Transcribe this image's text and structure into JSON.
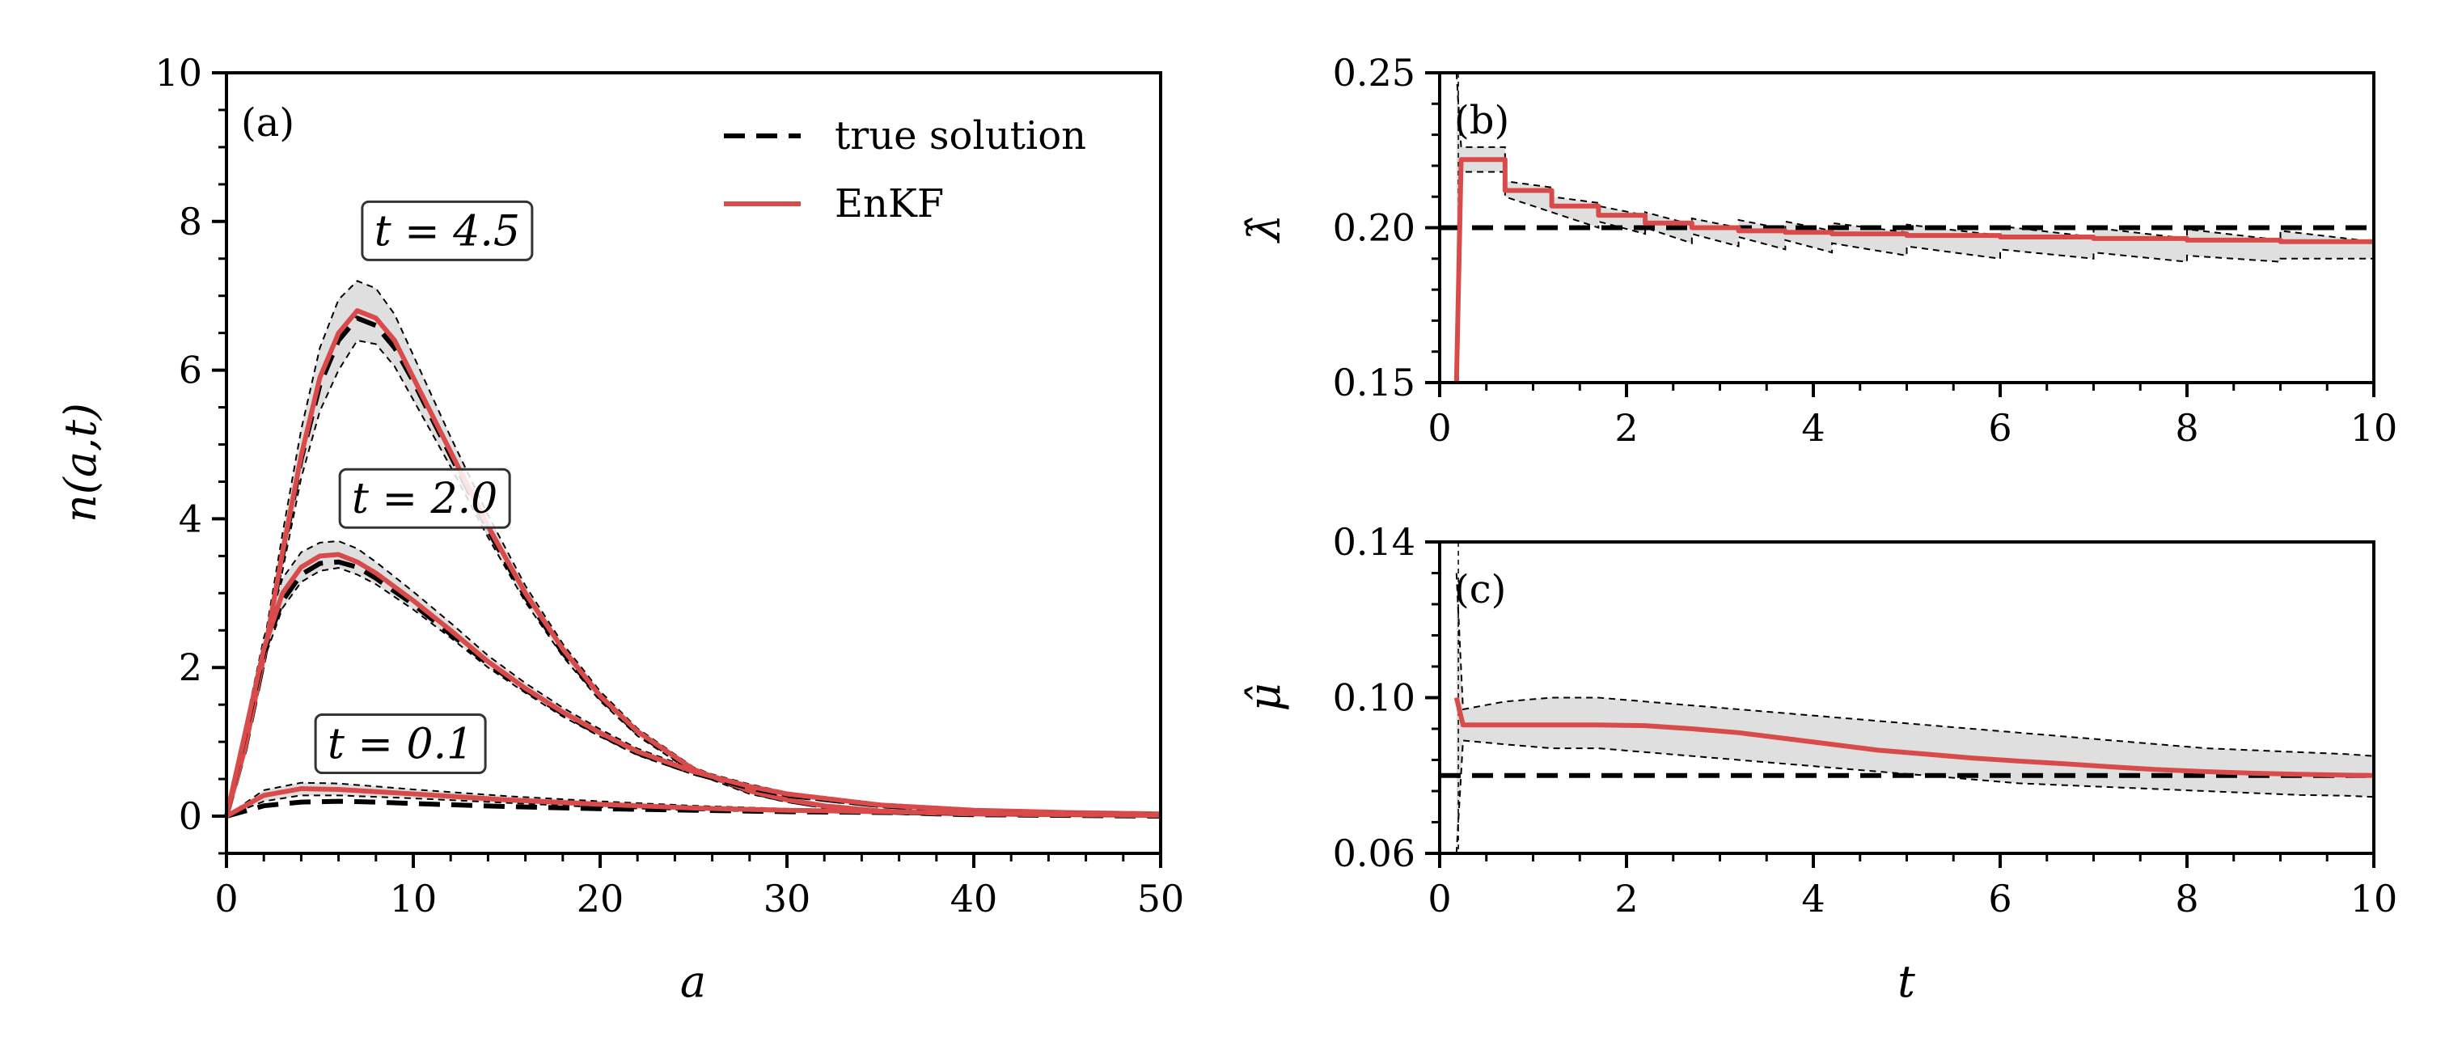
{
  "chart_data": [
    {
      "panel": "(a)",
      "type": "line",
      "xlabel": "a",
      "ylabel": "n(a,t)",
      "xlim": [
        0,
        50
      ],
      "ylim": [
        -0.5,
        10
      ],
      "xticks": [
        "0",
        "10",
        "20",
        "30",
        "40",
        "50"
      ],
      "yticks": [
        "0",
        "2",
        "4",
        "6",
        "8",
        "10"
      ],
      "legend": {
        "placement": "top-right",
        "entries": [
          "true solution",
          "EnKF"
        ]
      },
      "annotations": [
        {
          "label": "t = 4.5",
          "a": 7.7,
          "n": 7.7
        },
        {
          "label": "t = 2.0",
          "a": 6.5,
          "n": 4.1
        },
        {
          "label": "t = 0.1",
          "a": 5.2,
          "n": 0.8
        }
      ],
      "series": [
        {
          "name": "true solution",
          "t": 4.5,
          "style": "dashed",
          "x": [
            0,
            1,
            2,
            3,
            4,
            5,
            6,
            7,
            8,
            9,
            10,
            12,
            14,
            16,
            18,
            20,
            22,
            25,
            28,
            30,
            32,
            35,
            38,
            40,
            45,
            50
          ],
          "y": [
            0,
            0.9,
            2.1,
            3.5,
            4.8,
            5.8,
            6.4,
            6.7,
            6.6,
            6.3,
            5.85,
            4.85,
            3.85,
            2.95,
            2.2,
            1.6,
            1.12,
            0.62,
            0.33,
            0.21,
            0.13,
            0.06,
            0.03,
            0.02,
            0.01,
            0
          ]
        },
        {
          "name": "EnKF",
          "t": 4.5,
          "style": "solid",
          "x": [
            0,
            1,
            2,
            3,
            4,
            5,
            6,
            7,
            8,
            9,
            10,
            12,
            14,
            16,
            18,
            20,
            22,
            25,
            28,
            30,
            32,
            35,
            38,
            40,
            45,
            50
          ],
          "y": [
            0,
            0.92,
            2.15,
            3.55,
            4.85,
            5.9,
            6.5,
            6.8,
            6.7,
            6.4,
            5.9,
            4.9,
            3.9,
            3.0,
            2.25,
            1.62,
            1.14,
            0.63,
            0.34,
            0.22,
            0.14,
            0.07,
            0.04,
            0.03,
            0.02,
            0.01
          ],
          "band_upper": [
            0,
            1.0,
            2.3,
            3.8,
            5.2,
            6.3,
            6.95,
            7.2,
            7.1,
            6.75,
            6.2,
            5.1,
            4.05,
            3.1,
            2.32,
            1.68,
            1.18,
            0.66,
            0.36,
            0.23,
            0.15,
            0.08,
            0.05,
            0.04,
            0.03,
            0.02
          ],
          "band_lower": [
            0,
            0.85,
            2.0,
            3.3,
            4.55,
            5.45,
            6.0,
            6.4,
            6.35,
            6.05,
            5.6,
            4.7,
            3.75,
            2.88,
            2.15,
            1.55,
            1.08,
            0.58,
            0.3,
            0.19,
            0.11,
            0.05,
            0.02,
            0.01,
            0,
            0
          ]
        },
        {
          "name": "true solution",
          "t": 2.0,
          "style": "dashed",
          "x": [
            0,
            1,
            2,
            3,
            4,
            5,
            6,
            7,
            8,
            10,
            12,
            14,
            16,
            18,
            20,
            22,
            25,
            28,
            30,
            35,
            40,
            45,
            50
          ],
          "y": [
            0,
            1.1,
            2.2,
            2.9,
            3.25,
            3.4,
            3.42,
            3.35,
            3.2,
            2.85,
            2.45,
            2.05,
            1.7,
            1.38,
            1.1,
            0.85,
            0.58,
            0.38,
            0.28,
            0.14,
            0.07,
            0.04,
            0.02
          ]
        },
        {
          "name": "EnKF",
          "t": 2.0,
          "style": "solid",
          "x": [
            0,
            1,
            2,
            3,
            4,
            5,
            6,
            7,
            8,
            10,
            12,
            14,
            16,
            18,
            20,
            22,
            25,
            28,
            30,
            35,
            40,
            45,
            50
          ],
          "y": [
            0,
            1.12,
            2.25,
            3.0,
            3.35,
            3.5,
            3.52,
            3.42,
            3.27,
            2.9,
            2.5,
            2.08,
            1.72,
            1.4,
            1.12,
            0.87,
            0.6,
            0.4,
            0.3,
            0.15,
            0.08,
            0.05,
            0.03
          ],
          "band_upper": [
            0,
            1.2,
            2.4,
            3.2,
            3.55,
            3.68,
            3.7,
            3.6,
            3.42,
            3.02,
            2.6,
            2.16,
            1.79,
            1.46,
            1.17,
            0.91,
            0.63,
            0.43,
            0.32,
            0.17,
            0.1,
            0.06,
            0.04
          ],
          "band_lower": [
            0,
            1.05,
            2.1,
            2.8,
            3.15,
            3.3,
            3.34,
            3.25,
            3.12,
            2.78,
            2.4,
            2.0,
            1.66,
            1.34,
            1.07,
            0.82,
            0.56,
            0.36,
            0.26,
            0.12,
            0.06,
            0.03,
            0.01
          ]
        },
        {
          "name": "true solution",
          "t": 0.1,
          "style": "dashed",
          "x": [
            0,
            2,
            4,
            6,
            8,
            10,
            15,
            20,
            25,
            30,
            35,
            40,
            45,
            50
          ],
          "y": [
            0,
            0.14,
            0.19,
            0.2,
            0.19,
            0.17,
            0.13,
            0.1,
            0.08,
            0.06,
            0.05,
            0.04,
            0.03,
            0.02
          ]
        },
        {
          "name": "EnKF",
          "t": 0.1,
          "style": "solid",
          "x": [
            0,
            2,
            4,
            6,
            8,
            10,
            15,
            20,
            25,
            30,
            35,
            40,
            45,
            50
          ],
          "y": [
            0,
            0.28,
            0.37,
            0.36,
            0.33,
            0.3,
            0.22,
            0.16,
            0.11,
            0.08,
            0.06,
            0.04,
            0.03,
            0.02
          ],
          "band_upper": [
            0,
            0.35,
            0.45,
            0.44,
            0.4,
            0.36,
            0.27,
            0.2,
            0.14,
            0.1,
            0.08,
            0.06,
            0.05,
            0.04
          ],
          "band_lower": [
            0,
            0.2,
            0.28,
            0.28,
            0.26,
            0.24,
            0.18,
            0.12,
            0.08,
            0.06,
            0.04,
            0.02,
            0.01,
            0
          ]
        }
      ]
    },
    {
      "panel": "(b)",
      "type": "line",
      "xlabel": "",
      "ylabel": "λ̂",
      "xlim": [
        0,
        10
      ],
      "ylim": [
        0.15,
        0.25
      ],
      "xticks": [
        "0",
        "2",
        "4",
        "6",
        "8",
        "10"
      ],
      "yticks": [
        "0.15",
        "0.20",
        "0.25"
      ],
      "true_value": 0.2,
      "series": [
        {
          "name": "EnKF",
          "x": [
            0.18,
            0.23,
            0.7,
            0.7,
            1.2,
            1.2,
            1.7,
            1.7,
            2.2,
            2.2,
            2.7,
            2.7,
            3.2,
            3.2,
            3.7,
            3.7,
            4.2,
            4.2,
            5,
            5,
            6,
            6,
            7,
            7,
            8,
            8,
            9,
            9,
            10
          ],
          "y": [
            0.15,
            0.222,
            0.222,
            0.212,
            0.212,
            0.207,
            0.207,
            0.204,
            0.204,
            0.2015,
            0.2015,
            0.2,
            0.2,
            0.199,
            0.199,
            0.1985,
            0.1985,
            0.198,
            0.198,
            0.1975,
            0.1975,
            0.197,
            0.197,
            0.1965,
            0.1965,
            0.196,
            0.196,
            0.1955,
            0.1955
          ],
          "band_upper": [
            0.25,
            0.226,
            0.226,
            0.215,
            0.213,
            0.21,
            0.208,
            0.207,
            0.204,
            0.205,
            0.201,
            0.203,
            0.2,
            0.2025,
            0.1995,
            0.202,
            0.199,
            0.2015,
            0.1985,
            0.201,
            0.1975,
            0.2005,
            0.197,
            0.2,
            0.1965,
            0.1995,
            0.196,
            0.199,
            0.1955
          ],
          "band_lower": [
            0.15,
            0.218,
            0.218,
            0.21,
            0.205,
            0.205,
            0.2,
            0.202,
            0.198,
            0.2,
            0.195,
            0.198,
            0.194,
            0.197,
            0.193,
            0.196,
            0.192,
            0.195,
            0.191,
            0.194,
            0.19,
            0.193,
            0.19,
            0.192,
            0.189,
            0.191,
            0.189,
            0.19,
            0.19
          ]
        }
      ]
    },
    {
      "panel": "(c)",
      "type": "line",
      "xlabel": "t",
      "ylabel": "μ̂",
      "xlim": [
        0,
        10
      ],
      "ylim": [
        0.06,
        0.14
      ],
      "xticks": [
        "0",
        "2",
        "4",
        "6",
        "8",
        "10"
      ],
      "yticks": [
        "0.06",
        "0.10",
        "0.14"
      ],
      "true_value": 0.08,
      "series": [
        {
          "name": "EnKF",
          "x": [
            0.18,
            0.25,
            0.7,
            1.2,
            1.7,
            2.2,
            2.7,
            3.2,
            3.7,
            4.2,
            4.7,
            5.2,
            5.7,
            6.2,
            6.7,
            7.2,
            7.7,
            8.2,
            8.7,
            9.2,
            9.7,
            10
          ],
          "y": [
            0.1,
            0.093,
            0.093,
            0.093,
            0.093,
            0.0928,
            0.092,
            0.091,
            0.0895,
            0.088,
            0.0865,
            0.0855,
            0.0845,
            0.0837,
            0.083,
            0.0822,
            0.0815,
            0.081,
            0.0806,
            0.0803,
            0.0801,
            0.08
          ],
          "band_upper": [
            0.132,
            0.097,
            0.099,
            0.1,
            0.1,
            0.099,
            0.098,
            0.097,
            0.096,
            0.095,
            0.094,
            0.093,
            0.092,
            0.091,
            0.09,
            0.089,
            0.088,
            0.087,
            0.0865,
            0.086,
            0.0855,
            0.085
          ],
          "band_lower": [
            0.06,
            0.089,
            0.088,
            0.087,
            0.087,
            0.086,
            0.085,
            0.084,
            0.083,
            0.082,
            0.081,
            0.08,
            0.079,
            0.078,
            0.0775,
            0.077,
            0.0765,
            0.076,
            0.0755,
            0.075,
            0.0748,
            0.0745
          ]
        }
      ]
    }
  ],
  "colors": {
    "enkf": "#d94b4b",
    "true": "#000000",
    "band": "#d9d9d9",
    "enkf_band": "#f4d6d6"
  }
}
